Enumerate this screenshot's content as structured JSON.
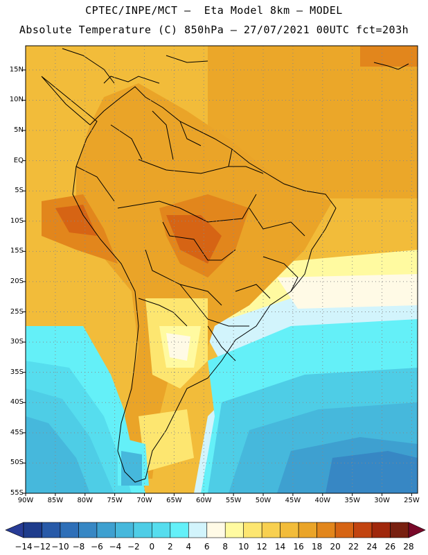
{
  "header": {
    "title_line1": "CPTEC/INPE/MCT –  Eta Model 8km – MODEL",
    "title_line2": "Absolute Temperature (C) 850hPa – 27/07/2021 00UTC fct=203h"
  },
  "map": {
    "lat_labels": [
      "15N",
      "10N",
      "5N",
      "EQ",
      "5S",
      "10S",
      "15S",
      "20S",
      "25S",
      "30S",
      "35S",
      "40S",
      "45S",
      "50S",
      "55S"
    ],
    "lat_values": [
      15,
      10,
      5,
      0,
      -5,
      -10,
      -15,
      -20,
      -25,
      -30,
      -35,
      -40,
      -45,
      -50,
      -55
    ],
    "lon_labels": [
      "90W",
      "85W",
      "80W",
      "75W",
      "70W",
      "65W",
      "60W",
      "55W",
      "50W",
      "45W",
      "40W",
      "35W",
      "30W",
      "25W"
    ],
    "lon_values": [
      -90,
      -85,
      -80,
      -75,
      -70,
      -65,
      -60,
      -55,
      -50,
      -45,
      -40,
      -35,
      -30,
      -25
    ],
    "lat_range": [
      -55,
      19
    ],
    "lon_range": [
      -90,
      -24
    ],
    "temperature_field_description_levels_c": [
      -14,
      28
    ]
  },
  "colorbar": {
    "labels": [
      "−14",
      "−12",
      "−10",
      "−8",
      "−6",
      "−4",
      "−2",
      "0",
      "2",
      "4",
      "6",
      "8",
      "10",
      "12",
      "14",
      "16",
      "18",
      "20",
      "22",
      "24",
      "26",
      "28"
    ],
    "colors": [
      "#1e3c8c",
      "#285aa8",
      "#2e6fb8",
      "#3787c4",
      "#3ea0d0",
      "#46b8dc",
      "#4ecde6",
      "#56ddee",
      "#64f0f8",
      "#d2f4fc",
      "#fffae6",
      "#fffaa0",
      "#fde670",
      "#f8d050",
      "#f2bc3a",
      "#eaa428",
      "#e2861c",
      "#d66414",
      "#c24410",
      "#a0280c",
      "#782010"
    ],
    "left_arrow_color": "#283c96",
    "right_arrow_color": "#780828"
  },
  "palette": {
    "ocean_warm": "#f2bc3a",
    "ocean_cool": "#46b8dc"
  }
}
